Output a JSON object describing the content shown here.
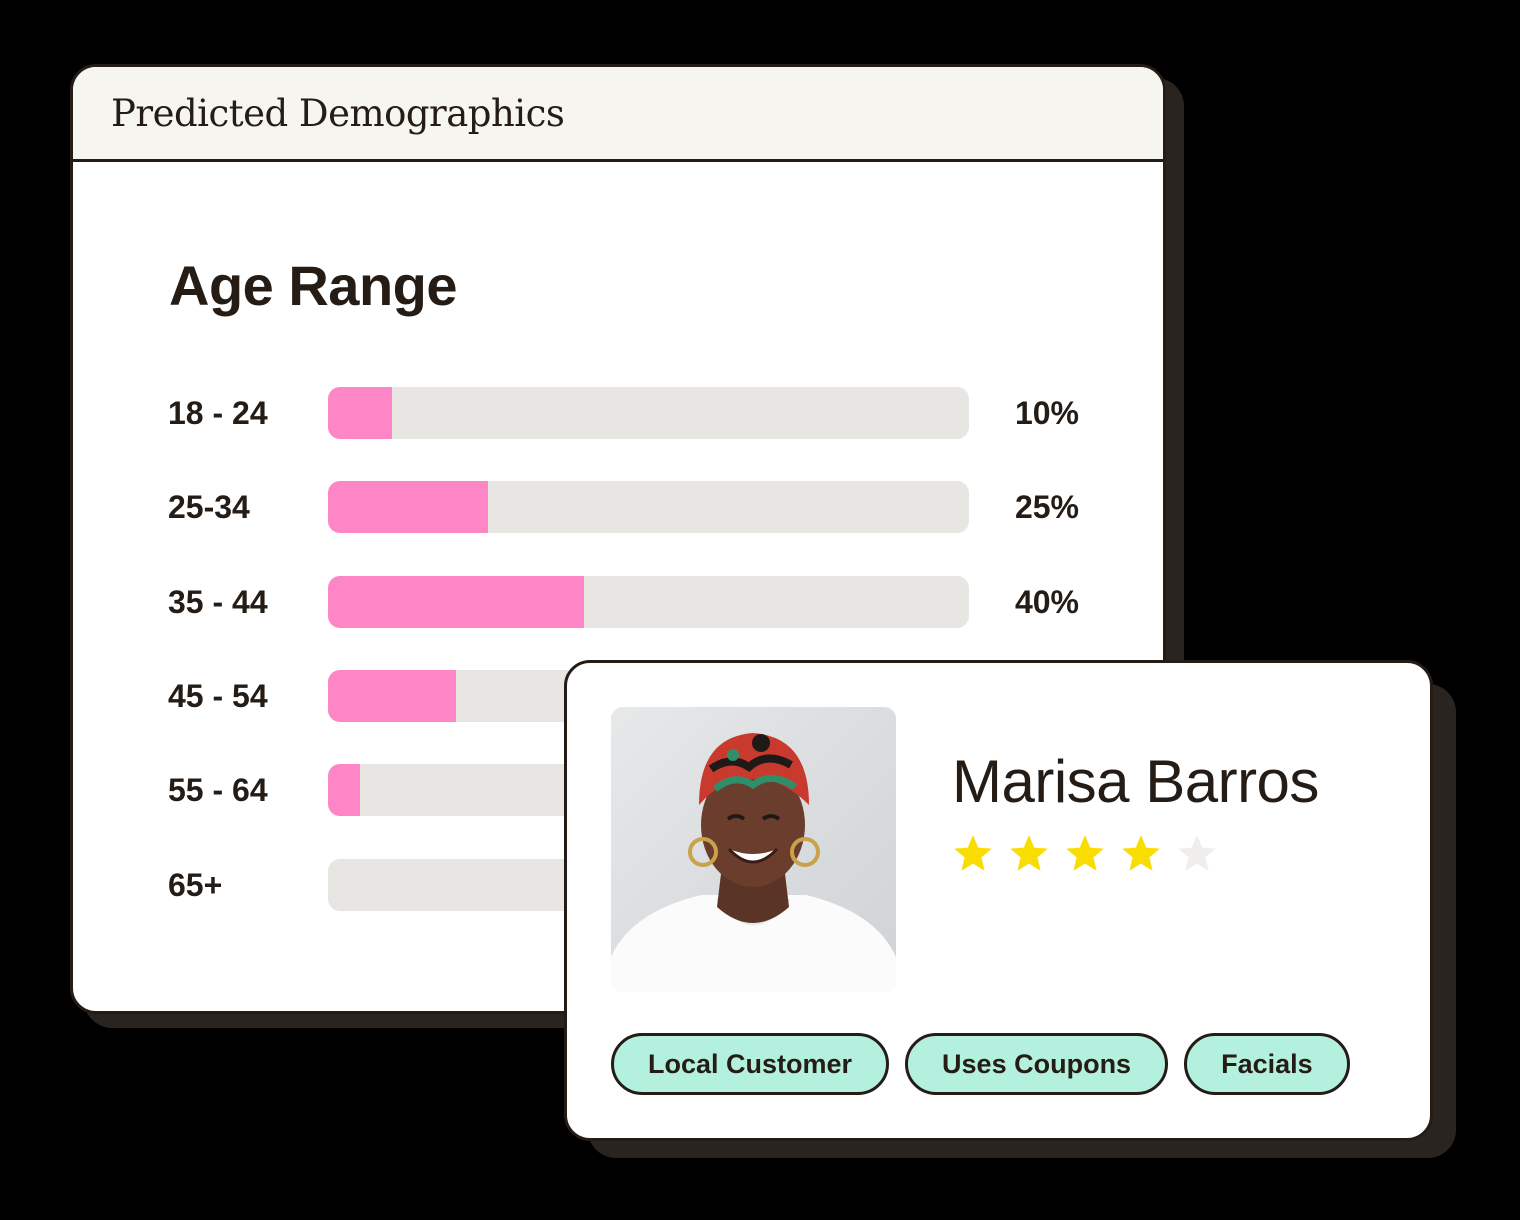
{
  "demographics": {
    "panel_title": "Predicted Demographics",
    "section_title": "Age Range"
  },
  "chart_data": {
    "type": "bar",
    "orientation": "horizontal",
    "categories": [
      "18 - 24",
      "25-34",
      "35 - 44",
      "45 - 54",
      "55 - 64",
      "65+"
    ],
    "values": [
      10,
      25,
      40,
      20,
      5,
      0
    ],
    "value_labels": [
      "10%",
      "25%",
      "40%",
      "",
      "",
      ""
    ],
    "title": "Age Range",
    "xlim": [
      0,
      100
    ],
    "bar_color": "#ff86c6",
    "track_color": "#e8e6e3"
  },
  "profile": {
    "name": "Marisa Barros",
    "rating": 4,
    "rating_max": 5,
    "star_color": "#fadd00",
    "star_empty_color": "#efeeec",
    "avatar_icon": "customer-photo",
    "tags": [
      {
        "label": "Local Customer"
      },
      {
        "label": "Uses Coupons"
      },
      {
        "label": "Facials"
      }
    ],
    "tag_color": "#b3f1de"
  }
}
